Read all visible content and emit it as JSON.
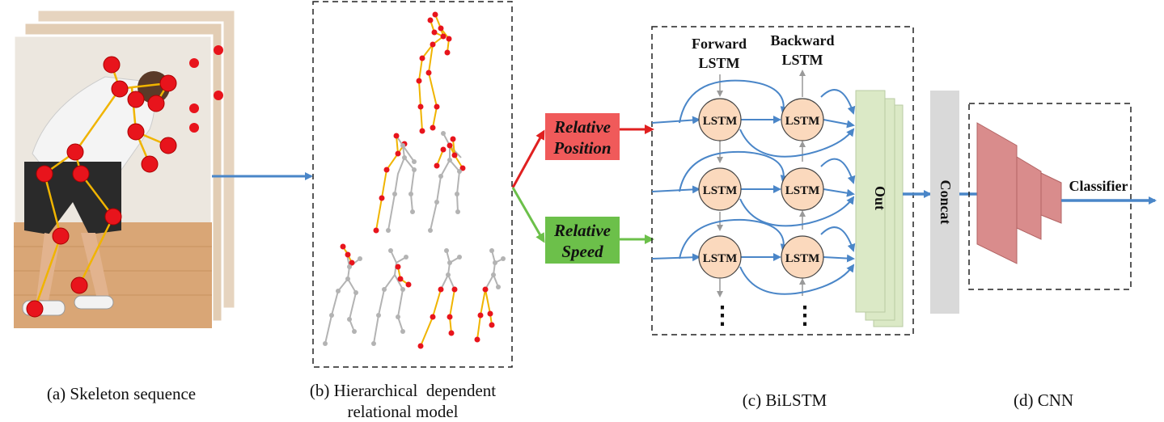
{
  "captions": {
    "a": "(a) Skeleton sequence",
    "b_line1": "(b) Hierarchical  dependent",
    "b_line2": "relational model",
    "c": "(c) BiLSTM",
    "d": "(d) CNN"
  },
  "labels": {
    "relative_position_line1": "Relative",
    "relative_position_line2": "Position",
    "relative_speed_line1": "Relative",
    "relative_speed_line2": "Speed",
    "forward_line1": "Forward",
    "forward_line2": "LSTM",
    "backward_line1": "Backward",
    "backward_line2": "LSTM",
    "lstm": "LSTM",
    "out": "Out",
    "concat": "Concat",
    "classifier": "Classifier",
    "ellipsis": "⋮"
  },
  "colors": {
    "arrow_blue": "#4a86c8",
    "red_arrow": "#e02020",
    "green_arrow": "#6cc04a",
    "position_box": "#f05a5a",
    "speed_box": "#6cc04a",
    "lstm_fill": "#fbd9bd",
    "out_fill": "#dbe9c6",
    "concat_fill": "#d9d9d9",
    "cnn_fill": "#d98c8c",
    "joint_red": "#e8141c",
    "bone_yellow": "#f0b400",
    "skeleton_gray": "#b3b3b3"
  }
}
